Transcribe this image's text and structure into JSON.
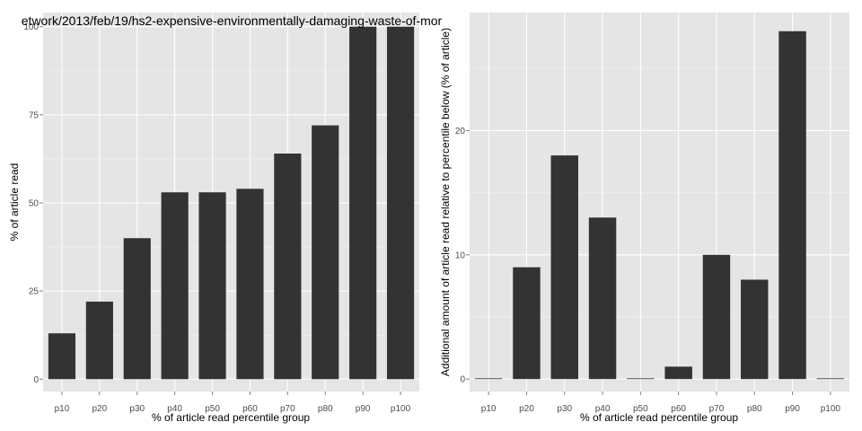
{
  "chart_data": [
    {
      "type": "bar",
      "title": "etwork/2013/feb/19/hs2-expensive-environmentally-damaging-waste-of-mor",
      "xlabel": "% of article read percentile group",
      "ylabel": "% of article read",
      "categories": [
        "p10",
        "p20",
        "p30",
        "p40",
        "p50",
        "p60",
        "p70",
        "p80",
        "p90",
        "p100"
      ],
      "values": [
        13,
        22,
        40,
        53,
        53,
        54,
        64,
        72,
        100,
        100
      ],
      "ylim": [
        -3.5,
        104
      ],
      "yticks": [
        0,
        25,
        50,
        75,
        100
      ],
      "grid": true,
      "colors": {
        "panel": "#e5e5e5",
        "grid": "#ffffff",
        "bar": "#333333"
      }
    },
    {
      "type": "bar",
      "title": "",
      "xlabel": "% of article read percentile group",
      "ylabel": "Additional amount of article read relative to percentile below (% of article)",
      "categories": [
        "p10",
        "p20",
        "p30",
        "p40",
        "p50",
        "p60",
        "p70",
        "p80",
        "p90",
        "p100"
      ],
      "values": [
        0,
        9,
        18,
        13,
        0,
        1,
        10,
        8,
        28,
        0
      ],
      "ylim": [
        -1,
        29.5
      ],
      "yticks": [
        0,
        10,
        20
      ],
      "grid": true,
      "colors": {
        "panel": "#e5e5e5",
        "grid": "#ffffff",
        "bar": "#333333"
      }
    }
  ]
}
